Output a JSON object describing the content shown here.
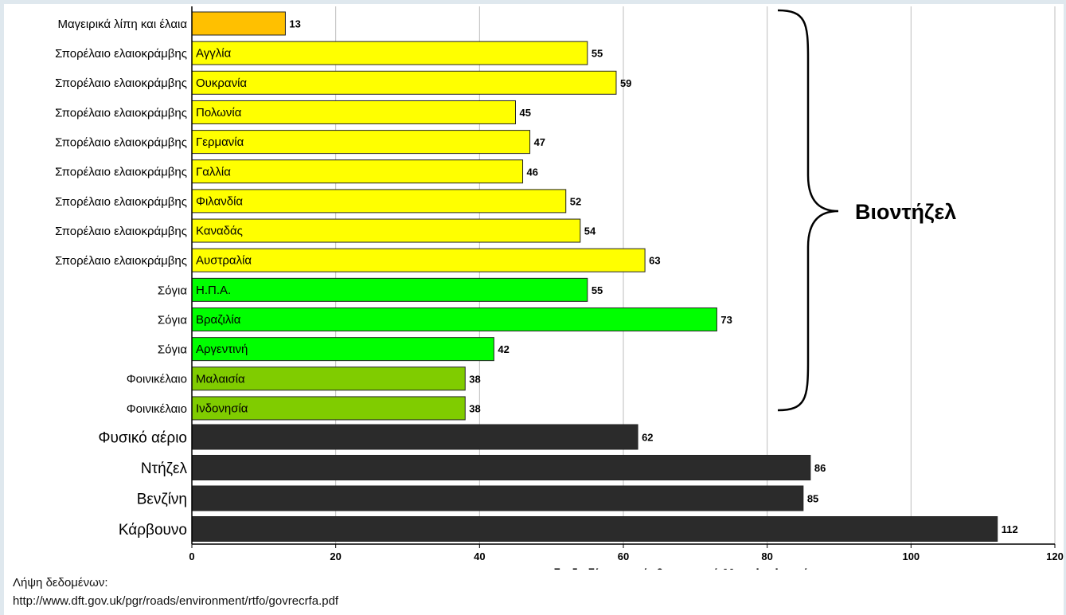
{
  "chart_data": {
    "type": "bar",
    "orientation": "horizontal",
    "categories": [
      {
        "label": "Μαγειρικά λίπη και έλαια",
        "bar_label": "",
        "value": 13,
        "color": "#ffc000",
        "size": "small"
      },
      {
        "label": "Σπορέλαιο ελαιοκράμβης",
        "bar_label": "Αγγλία",
        "value": 55,
        "color": "#ffff00",
        "size": "small"
      },
      {
        "label": "Σπορέλαιο ελαιοκράμβης",
        "bar_label": "Ουκρανία",
        "value": 59,
        "color": "#ffff00",
        "size": "small"
      },
      {
        "label": "Σπορέλαιο ελαιοκράμβης",
        "bar_label": "Πολωνία",
        "value": 45,
        "color": "#ffff00",
        "size": "small"
      },
      {
        "label": "Σπορέλαιο ελαιοκράμβης",
        "bar_label": "Γερμανία",
        "value": 47,
        "color": "#ffff00",
        "size": "small"
      },
      {
        "label": "Σπορέλαιο ελαιοκράμβης",
        "bar_label": "Γαλλία",
        "value": 46,
        "color": "#ffff00",
        "size": "small"
      },
      {
        "label": "Σπορέλαιο ελαιοκράμβης",
        "bar_label": "Φιλανδία",
        "value": 52,
        "color": "#ffff00",
        "size": "small"
      },
      {
        "label": "Σπορέλαιο ελαιοκράμβης",
        "bar_label": "Καναδάς",
        "value": 54,
        "color": "#ffff00",
        "size": "small"
      },
      {
        "label": "Σπορέλαιο ελαιοκράμβης",
        "bar_label": "Αυστραλία",
        "value": 63,
        "color": "#ffff00",
        "size": "small"
      },
      {
        "label": "Σόγια",
        "bar_label": "Η.Π.Α.",
        "value": 55,
        "color": "#00ff00",
        "size": "small"
      },
      {
        "label": "Σόγια",
        "bar_label": "Βραζιλία",
        "value": 73,
        "color": "#00ff00",
        "size": "small"
      },
      {
        "label": "Σόγια",
        "bar_label": "Αργεντινή",
        "value": 42,
        "color": "#00ff00",
        "size": "small"
      },
      {
        "label": "Φοινικέλαιο",
        "bar_label": "Μαλαισία",
        "value": 38,
        "color": "#80cc00",
        "size": "small"
      },
      {
        "label": "Φοινικέλαιο",
        "bar_label": "Ινδονησία",
        "value": 38,
        "color": "#80cc00",
        "size": "small"
      },
      {
        "label": "Φυσικό αέριο",
        "bar_label": "",
        "value": 62,
        "color": "#2b2b2b",
        "size": "large"
      },
      {
        "label": "Ντήζελ",
        "bar_label": "",
        "value": 86,
        "color": "#2b2b2b",
        "size": "large"
      },
      {
        "label": "Βενζίνη",
        "bar_label": "",
        "value": 85,
        "color": "#2b2b2b",
        "size": "large"
      },
      {
        "label": "Κάρβουνο",
        "bar_label": "",
        "value": 112,
        "color": "#2b2b2b",
        "size": "large"
      }
    ],
    "xlim": [
      0,
      120
    ],
    "xticks": [
      0,
      20,
      40,
      60,
      80,
      100,
      120
    ],
    "xlabel": "gr διοξειδίου του άνθρακα ανά Megajoule ενέργειας",
    "grid": "vertical",
    "annotation": {
      "text": "Βιοντήζελ",
      "type": "brace",
      "spans": "rows 1-13"
    }
  },
  "source": {
    "line1": "Λήψη δεδομένων:",
    "line2": "http://www.dft.gov.uk/pgr/roads/environment/rtfo/govrecrfa.pdf"
  }
}
